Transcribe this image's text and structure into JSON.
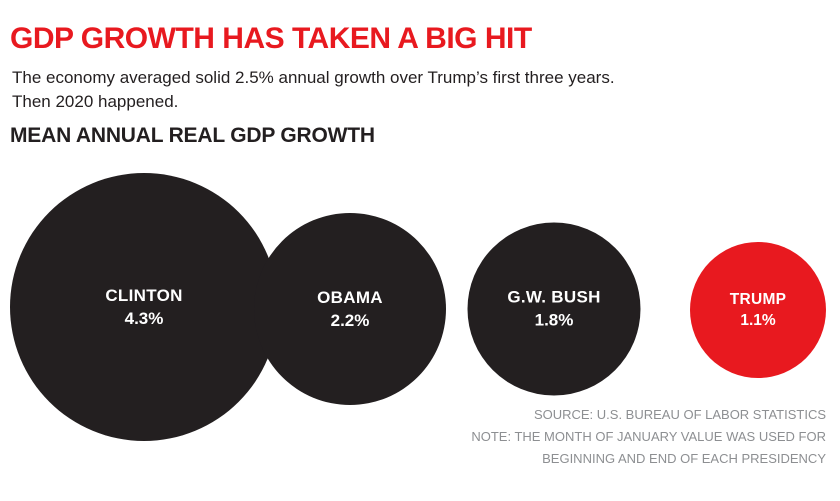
{
  "header": {
    "title": "GDP GROWTH HAS TAKEN A BIG HIT",
    "subtitle_line1": "The economy averaged solid 2.5% annual growth over Trump’s first three years.",
    "subtitle_line2": "Then 2020 happened."
  },
  "chart_data": {
    "type": "bubble",
    "title": "MEAN ANNUAL REAL GDP GROWTH",
    "categories": [
      "CLINTON",
      "OBAMA",
      "G.W. BUSH",
      "TRUMP"
    ],
    "values": [
      4.3,
      2.2,
      1.8,
      1.1
    ],
    "value_labels": [
      "4.3%",
      "2.2%",
      "1.8%",
      "1.1%"
    ],
    "unit": "mean annual real GDP growth, percent",
    "colors": [
      "#231f20",
      "#231f20",
      "#231f20",
      "#e8191f"
    ],
    "layout": "area-proportional circles in a horizontal row, largest to smallest, president name and value centered in each circle"
  },
  "footer": {
    "source_line": "SOURCE: U.S. BUREAU OF LABOR STATISTICS",
    "note_line1": "NOTE: THE MONTH OF JANUARY VALUE WAS USED FOR",
    "note_line2": "BEGINNING AND END OF EACH PRESIDENCY"
  },
  "colors": {
    "title_red": "#e8191f",
    "bubble_black": "#231f20",
    "trump_red": "#e8191f",
    "note_gray": "#8d8f92",
    "background": "#ffffff"
  }
}
